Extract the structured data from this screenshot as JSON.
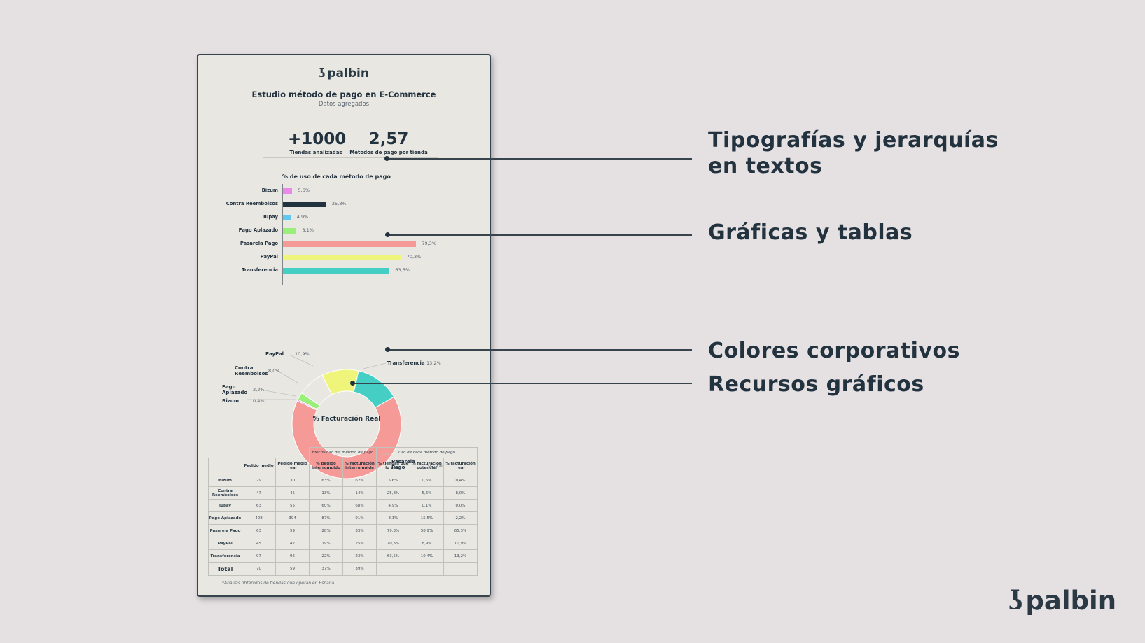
{
  "card": {
    "logo_text": "palbin",
    "title": "Estudio método de pago en E-Commerce",
    "subtitle": "Datos agregados",
    "stats": [
      {
        "value": "+1000",
        "label": "Tiendas analizadas"
      },
      {
        "value": "2,57",
        "label": "Métodos de pago por tienda"
      }
    ],
    "bar_title": "% de uso de cada método de pago",
    "footnote": "*Análisis obtenidos de tiendas que operan en España"
  },
  "chart_data": [
    {
      "type": "bar",
      "orientation": "horizontal",
      "title": "% de uso de cada método de pago",
      "categories": [
        "Bizum",
        "Contra Reembolsos",
        "Iupay",
        "Pago Aplazado",
        "Pasarela Pago",
        "PayPal",
        "Transferencia"
      ],
      "values": [
        5.6,
        25.8,
        4.9,
        8.1,
        79.3,
        70.3,
        63.5
      ],
      "value_labels": [
        "5,6%",
        "25,8%",
        "4,9%",
        "8,1%",
        "79,3%",
        "70,3%",
        "63,5%"
      ],
      "colors": [
        "#e98ae9",
        "#23323f",
        "#5ec8f0",
        "#9aee7a",
        "#f59a96",
        "#eef57a",
        "#45cfc4"
      ],
      "xlim": [
        0,
        100
      ]
    },
    {
      "type": "pie",
      "donut": true,
      "center_label": "% Facturación Real",
      "labels": [
        "Transferencia",
        "Pasarela Pago",
        "Bizum",
        "Pago Aplazado",
        "Contra Reembolsos",
        "PayPal"
      ],
      "values": [
        13.2,
        65.3,
        0.4,
        2.2,
        8.0,
        10.9
      ],
      "value_labels": [
        "13,2%",
        "65,3%",
        "0,4%",
        "2,2%",
        "8,0%",
        "10,9%"
      ],
      "colors": [
        "#45cfc4",
        "#f59a96",
        "#e98ae9",
        "#9aee7a",
        "#e8e7e2",
        "#eef57a"
      ]
    }
  ],
  "table": {
    "group_headers": [
      "Efectividad del método de pago",
      "Uso de cada método de pago"
    ],
    "headers": [
      "Pedido medio",
      "Pedido medio real",
      "% pedido interrumpido",
      "% facturación interrumpida",
      "% tiendas que lo usan",
      "% facturación potencial",
      "% facturación real"
    ],
    "rows": [
      {
        "name": "Bizum",
        "cells": [
          "29",
          "30",
          "63%",
          "62%",
          "5,6%",
          "0,6%",
          "0,4%"
        ]
      },
      {
        "name": "Contra Reembolsos",
        "cells": [
          "47",
          "45",
          "13%",
          "14%",
          "25,8%",
          "5,6%",
          "8,0%"
        ]
      },
      {
        "name": "Iupay",
        "cells": [
          "63",
          "55",
          "60%",
          "68%",
          "4,9%",
          "0,1%",
          "0,0%"
        ]
      },
      {
        "name": "Pago Aplazado",
        "cells": [
          "428",
          "394",
          "87%",
          "91%",
          "8,1%",
          "15,5%",
          "2,2%"
        ]
      },
      {
        "name": "Pasarela Pago",
        "cells": [
          "63",
          "59",
          "28%",
          "33%",
          "79,3%",
          "58,9%",
          "65,3%"
        ]
      },
      {
        "name": "PayPal",
        "cells": [
          "45",
          "42",
          "19%",
          "25%",
          "70,3%",
          "8,9%",
          "10,9%"
        ]
      },
      {
        "name": "Transferencia",
        "cells": [
          "97",
          "96",
          "22%",
          "23%",
          "63,5%",
          "10,4%",
          "13,2%"
        ]
      }
    ],
    "total": {
      "name": "Total",
      "cells": [
        "70",
        "59",
        "37%",
        "39%",
        "",
        "",
        ""
      ]
    }
  },
  "callouts": [
    {
      "text": "Tipografías y jerarquías en textos"
    },
    {
      "text": "Gráficas y tablas"
    },
    {
      "text": "Colores corporativos"
    },
    {
      "text": "Recursos gráficos"
    }
  ],
  "brand": {
    "text": "palbin"
  }
}
